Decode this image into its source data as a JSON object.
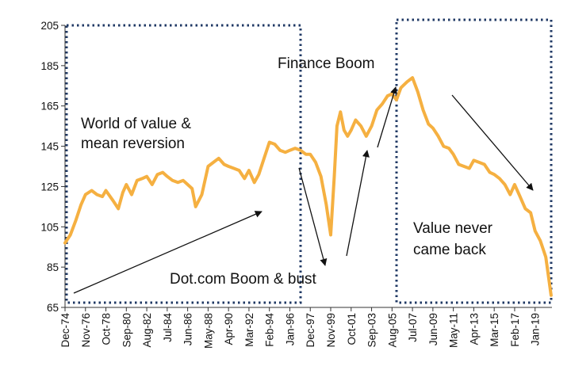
{
  "chart_data": {
    "type": "line",
    "title": "",
    "xlabel": "",
    "ylabel": "",
    "ylim": [
      65,
      205
    ],
    "y_ticks": [
      205,
      185,
      165,
      145,
      125,
      105,
      85,
      65
    ],
    "x_tick_labels": [
      "Dec-74",
      "Nov-76",
      "Oct-78",
      "Sep-80",
      "Aug-82",
      "Jul-84",
      "Jun-86",
      "May-88",
      "Apr-90",
      "Mar-92",
      "Feb-94",
      "Jan-96",
      "Dec-97",
      "Nov-99",
      "Oct-01",
      "Sep-03",
      "Aug-05",
      "Jul-07",
      "Jun-09",
      "May-11",
      "Apr-13",
      "Mar-15",
      "Feb-17",
      "Jan-19"
    ],
    "grid": false,
    "legend": "none",
    "series": [
      {
        "color": "#F5B041",
        "x": [
          "Dec-74",
          "Jun-75",
          "Dec-75",
          "Jun-76",
          "Nov-76",
          "Jun-77",
          "Dec-77",
          "Jun-78",
          "Oct-78",
          "Jun-79",
          "Dec-79",
          "May-80",
          "Sep-80",
          "Mar-81",
          "Sep-81",
          "Mar-82",
          "Aug-82",
          "Feb-83",
          "Aug-83",
          "Feb-84",
          "Jul-84",
          "Jan-85",
          "Jul-85",
          "Jan-86",
          "Jun-86",
          "Nov-86",
          "Mar-87",
          "Oct-87",
          "May-88",
          "Nov-88",
          "May-89",
          "Nov-89",
          "Apr-90",
          "Oct-90",
          "Apr-91",
          "Oct-91",
          "Mar-92",
          "Sep-92",
          "Feb-93",
          "Aug-93",
          "Feb-94",
          "Aug-94",
          "Feb-95",
          "Aug-95",
          "Jan-96",
          "Jul-96",
          "Jan-97",
          "Jul-97",
          "Dec-97",
          "Jun-98",
          "Dec-98",
          "Jun-99",
          "Nov-99",
          "Mar-00",
          "Jun-00",
          "Oct-00",
          "Feb-01",
          "Jun-01",
          "Oct-01",
          "Mar-02",
          "Sep-02",
          "Mar-03",
          "Sep-03",
          "Mar-04",
          "Sep-04",
          "Mar-05",
          "Aug-05",
          "Jan-06",
          "Jun-06",
          "Jan-07",
          "Jul-07",
          "Jan-08",
          "Jul-08",
          "Jan-09",
          "Jun-09",
          "Dec-09",
          "Jun-10",
          "Dec-10",
          "May-11",
          "Nov-11",
          "May-12",
          "Nov-12",
          "Apr-13",
          "Oct-13",
          "Apr-14",
          "Oct-14",
          "Mar-15",
          "Sep-15",
          "Mar-16",
          "Sep-16",
          "Feb-17",
          "Aug-17",
          "Feb-18",
          "Aug-18",
          "Jan-19",
          "Jul-19",
          "Jan-20",
          "Jul-20"
        ],
        "values": [
          97,
          101,
          108,
          116,
          121,
          123,
          121,
          120,
          123,
          118,
          114,
          122,
          126,
          121,
          128,
          129,
          130,
          126,
          131,
          132,
          130,
          128,
          127,
          128,
          126,
          124,
          115,
          121,
          135,
          137,
          139,
          136,
          135,
          134,
          133,
          129,
          133,
          127,
          131,
          139,
          147,
          146,
          143,
          142,
          143,
          144,
          143,
          141,
          141,
          137,
          130,
          116,
          101,
          130,
          155,
          162,
          153,
          150,
          153,
          158,
          155,
          150,
          155,
          163,
          166,
          170,
          171,
          168,
          174,
          177,
          179,
          172,
          163,
          156,
          154,
          150,
          145,
          144,
          141,
          136,
          135,
          134,
          138,
          137,
          136,
          132,
          131,
          129,
          126,
          121,
          126,
          120,
          114,
          112,
          103,
          98,
          90,
          71
        ]
      }
    ],
    "annotations": {
      "finance_boom": "Finance Boom",
      "world_of_value_line1": "World of value &",
      "world_of_value_line2": "mean reversion",
      "dotcom": "Dot.com Boom & bust",
      "value_never_line1": "Value never",
      "value_never_line2": "came back"
    }
  }
}
